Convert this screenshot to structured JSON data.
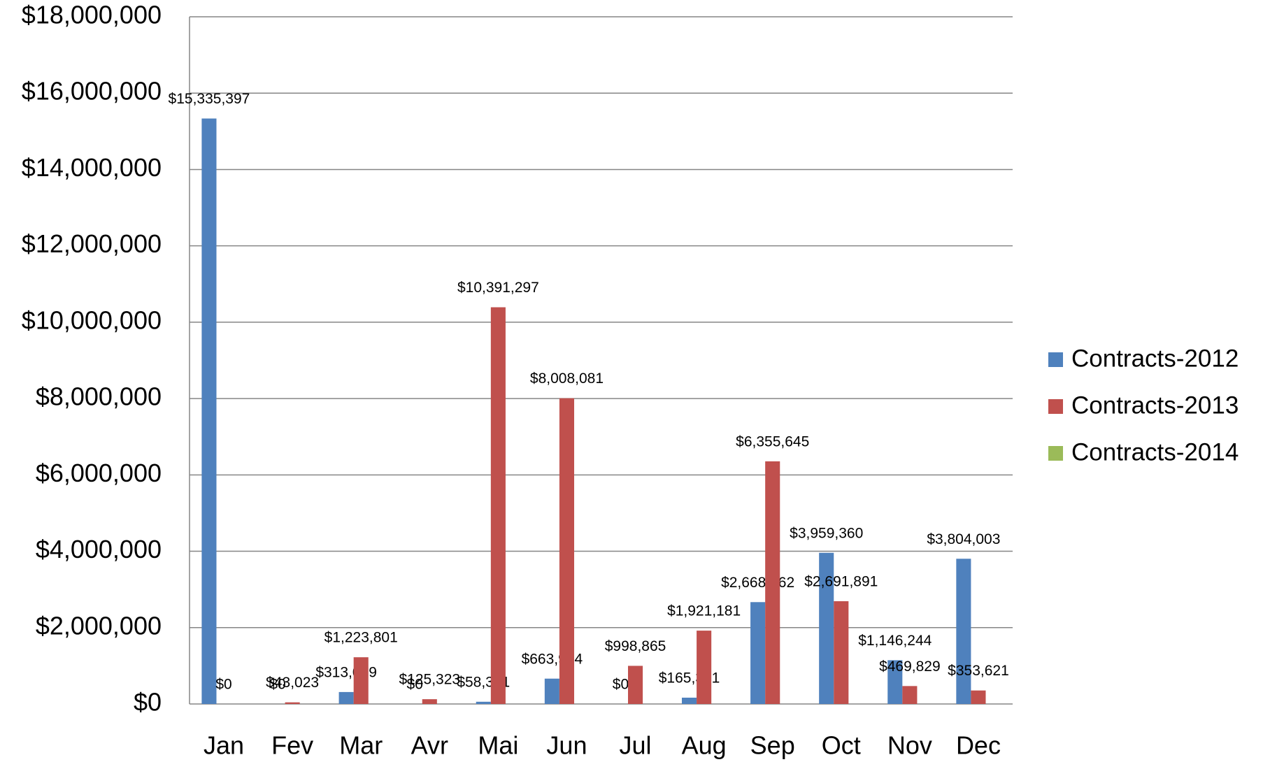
{
  "chart_data": {
    "type": "bar",
    "categories": [
      "Jan",
      "Fev",
      "Mar",
      "Avr",
      "Mai",
      "Jun",
      "Jul",
      "Aug",
      "Sep",
      "Oct",
      "Nov",
      "Dec"
    ],
    "series": [
      {
        "name": "Contracts-2012",
        "color": "#4f81bd",
        "values": [
          15335397,
          0,
          313039,
          0,
          58321,
          663924,
          0,
          165391,
          2668062,
          3959360,
          1146244,
          3804003
        ],
        "value_labels": [
          "$15,335,397",
          "$0",
          "$313,039",
          "$0",
          "$58,321",
          "$663,924",
          "$0",
          "$165,391",
          "$2,668,062",
          "$3,959,360",
          "$1,146,244",
          "$3,804,003"
        ]
      },
      {
        "name": "Contracts-2013",
        "color": "#c0504d",
        "values": [
          0,
          43023,
          1223801,
          125323,
          10391297,
          8008081,
          998865,
          1921181,
          6355645,
          2691891,
          469829,
          353621
        ],
        "value_labels": [
          "$0",
          "$43,023",
          "$1,223,801",
          "$125,323",
          "$10,391,297",
          "$8,008,081",
          "$998,865",
          "$1,921,181",
          "$6,355,645",
          "$2,691,891",
          "$469,829",
          "$353,621"
        ]
      },
      {
        "name": "Contracts-2014",
        "color": "#9bbb59",
        "values": [
          null,
          null,
          null,
          null,
          null,
          null,
          null,
          null,
          null,
          null,
          null,
          null
        ]
      }
    ],
    "ylim": [
      0,
      18000000
    ],
    "yticks": [
      {
        "value": 0,
        "label": "$0"
      },
      {
        "value": 2000000,
        "label": "$2,000,000"
      },
      {
        "value": 4000000,
        "label": "$4,000,000"
      },
      {
        "value": 6000000,
        "label": "$6,000,000"
      },
      {
        "value": 8000000,
        "label": "$8,000,000"
      },
      {
        "value": 10000000,
        "label": "$10,000,000"
      },
      {
        "value": 12000000,
        "label": "$12,000,000"
      },
      {
        "value": 14000000,
        "label": "$14,000,000"
      },
      {
        "value": 16000000,
        "label": "$16,000,000"
      },
      {
        "value": 18000000,
        "label": "$18,000,000"
      }
    ],
    "grid": true,
    "legend": "right"
  }
}
